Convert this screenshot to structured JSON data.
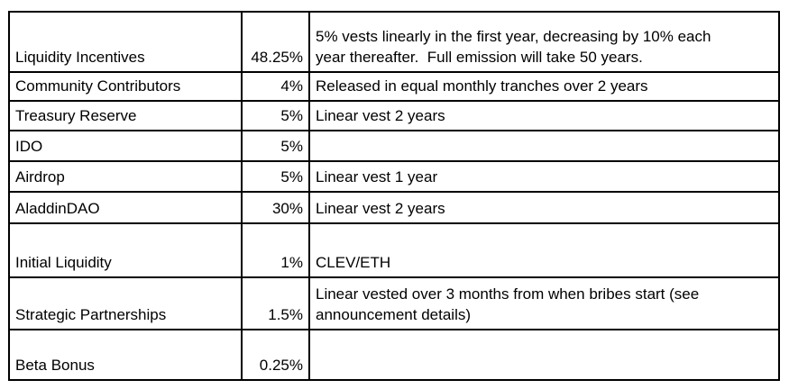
{
  "colors": {
    "background": "#ffffff",
    "border": "#000000",
    "text": "#000000"
  },
  "table": {
    "title": "token-allocation",
    "rows": [
      {
        "label": "Liquidity Incentives",
        "percent": "48.25%",
        "note": "5% vests linearly in the first year, decreasing by 10% each\nyear thereafter.  Full emission will take 50 years."
      },
      {
        "label": "Community Contributors",
        "percent": "4%",
        "note": "Released in equal monthly tranches over 2 years"
      },
      {
        "label": "Treasury Reserve",
        "percent": "5%",
        "note": "Linear vest 2 years"
      },
      {
        "label": "IDO",
        "percent": "5%",
        "note": ""
      },
      {
        "label": "Airdrop",
        "percent": "5%",
        "note": "Linear vest 1 year"
      },
      {
        "label": "AladdinDAO",
        "percent": "30%",
        "note": "Linear vest 2 years"
      },
      {
        "label": "Initial Liquidity",
        "percent": "1%",
        "note": "CLEV/ETH"
      },
      {
        "label": "Strategic Partnerships",
        "percent": "1.5%",
        "note": "Linear vested over 3 months from when bribes start (see\nannouncement details)"
      },
      {
        "label": "Beta Bonus",
        "percent": "0.25%",
        "note": ""
      }
    ]
  }
}
